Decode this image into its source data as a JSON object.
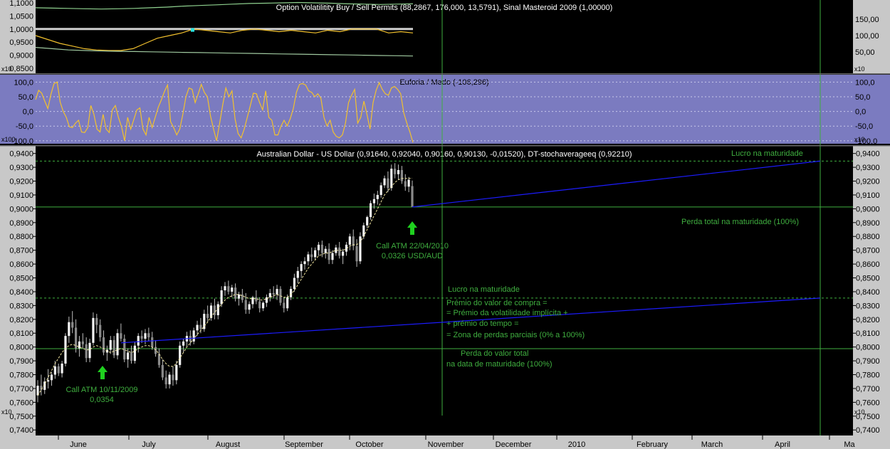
{
  "colors": {
    "background": "#000000",
    "euforia_panel": "#7b7bc0",
    "axis_strip": "#c8c8c8",
    "green_line": "#3fae3f",
    "yellow_line": "#f2c12e",
    "blue_line": "#1c1cff",
    "arrow": "#1fd11f"
  },
  "icons": {
    "up_arrow": "up-arrow-icon"
  },
  "chart_data": [
    {
      "type": "line",
      "title": "Option Volatilitity Buy / Sell Permits (88,2867, 176,000, 13,5791), Sinal Masteroid 2009 (1,00000)",
      "scale_label_left": "x10",
      "scale_label_right": "x10",
      "left_ticks": [
        "1,1000",
        "1,0500",
        "1,0000",
        "0,9500",
        "0,9000",
        "0,8500"
      ],
      "left_ylim": [
        0.85,
        1.1
      ],
      "right_ticks": [
        "150,00",
        "100,00",
        "50,00"
      ],
      "right_ylim": [
        0,
        200
      ],
      "series": [
        {
          "values": [
            185,
            184,
            183,
            182,
            181,
            182,
            183,
            185,
            187,
            190,
            192,
            194,
            196,
            198,
            199,
            200,
            201,
            200,
            199,
            197,
            196,
            195,
            196,
            197
          ]
        },
        {
          "values": [
            0.99,
            0.997,
            1.0,
            1.0,
            1.0,
            1.0,
            1.0,
            1.0,
            1.0,
            1.0,
            1.0,
            1.0,
            1.0,
            1.0,
            1.0,
            1.0,
            1.0,
            1.0,
            1.0,
            1.0,
            1.0,
            1.0,
            1.0,
            1.0
          ]
        },
        {
          "values": [
            0.975,
            0.96,
            0.945,
            0.935,
            0.925,
            0.92,
            0.918,
            0.918,
            0.925,
            0.945,
            0.965,
            0.975,
            0.985,
            1.0,
            0.995,
            0.99,
            0.985,
            0.995,
            1.0,
            0.995,
            0.99,
            0.995,
            0.99,
            0.985,
            0.995,
            0.99,
            1.0,
            1.0,
            1.0,
            0.985,
            0.99,
            0.985
          ]
        },
        {
          "values": [
            0.93,
            0.925,
            0.92,
            0.918,
            0.916,
            0.915,
            0.914,
            0.913,
            0.912,
            0.911,
            0.91,
            0.909,
            0.908,
            0.907,
            0.906,
            0.905,
            0.904,
            0.903,
            0.902,
            0.901,
            0.9,
            0.899,
            0.898,
            0.897
          ]
        }
      ]
    },
    {
      "type": "line",
      "title": "Euforia / Medo (-106,296)",
      "scale_label_left": "x100",
      "scale_label_right": "x10",
      "left_ticks": [
        "100,0",
        "50,0",
        "0,0",
        "-50,0",
        "-100,0"
      ],
      "right_ticks": [
        "100,0",
        "50,0",
        "0,0",
        "-50,0",
        "-100,0"
      ],
      "ylim": [
        -110,
        125
      ],
      "series": [
        {
          "values": [
            40,
            72,
            62,
            35,
            10,
            58,
            95,
            100,
            32,
            0,
            -20,
            -52,
            -55,
            -40,
            -30,
            -70,
            -72,
            -55,
            20,
            -10,
            -60,
            -70,
            -10,
            -60,
            -72,
            5,
            20,
            -20,
            -52,
            -100,
            -20,
            -60,
            -28,
            5,
            12,
            -60,
            -80,
            -20,
            -55,
            -20,
            15,
            40,
            68,
            90,
            -35,
            -55,
            -80,
            -60,
            -10,
            50,
            80,
            75,
            30,
            60,
            92,
            65,
            50,
            -15,
            -60,
            -100,
            -40,
            22,
            80,
            50,
            70,
            -25,
            -75,
            -90,
            -60,
            -20,
            20,
            62,
            60,
            30,
            5,
            70,
            -20,
            -30,
            -80,
            -80,
            -50,
            -30,
            -50,
            -25,
            10,
            65,
            92,
            95,
            90,
            70,
            65,
            50,
            60,
            45,
            -20,
            -50,
            -30,
            -70,
            -85,
            -90,
            -80,
            -40,
            30,
            55,
            75,
            -40,
            -20,
            35,
            -10,
            -60,
            30,
            72,
            98,
            75,
            60,
            55,
            80,
            85,
            75,
            60,
            -5,
            -40,
            -70,
            -106
          ]
        }
      ]
    },
    {
      "type": "bar",
      "title": "Australian Dollar - US Dollar (0,91640, 0,92040, 0,90160, 0,90130, -0,01520), DT-stochaverageeq (0,92210)",
      "scale_label_left": "x10",
      "scale_label_right": "x10",
      "left_ticks": [
        "0,9400",
        "0,9300",
        "0,9200",
        "0,9100",
        "0,9000",
        "0,8900",
        "0,8800",
        "0,8700",
        "0,8600",
        "0,8500",
        "0,8400",
        "0,8300",
        "0,8200",
        "0,8100",
        "0,8000",
        "0,7900",
        "0,7800",
        "0,7700",
        "0,7600",
        "0,7500",
        "0,7400"
      ],
      "right_ticks": [
        "0,9400",
        "0,9300",
        "0,9200",
        "0,9100",
        "0,9000",
        "0,8900",
        "0,8800",
        "0,8700",
        "0,8600",
        "0,8500",
        "0,8400",
        "0,8300",
        "0,8200",
        "0,8100",
        "0,8000",
        "0,7900",
        "0,7800",
        "0,7700",
        "0,7600",
        "0,7500",
        "0,7400"
      ],
      "ylim": [
        0.736,
        0.9455
      ],
      "x_labels": [
        "June",
        "July",
        "August",
        "September",
        "October",
        "November",
        "December",
        "2010",
        "February",
        "March",
        "April",
        "Ma"
      ],
      "candles": [
        [
          0.765,
          0.776,
          0.76,
          0.772
        ],
        [
          0.772,
          0.78,
          0.765,
          0.769
        ],
        [
          0.769,
          0.778,
          0.766,
          0.775
        ],
        [
          0.775,
          0.784,
          0.77,
          0.776
        ],
        [
          0.776,
          0.782,
          0.772,
          0.78
        ],
        [
          0.78,
          0.79,
          0.777,
          0.786
        ],
        [
          0.786,
          0.788,
          0.779,
          0.781
        ],
        [
          0.781,
          0.79,
          0.778,
          0.788
        ],
        [
          0.788,
          0.81,
          0.786,
          0.808
        ],
        [
          0.808,
          0.822,
          0.803,
          0.818
        ],
        [
          0.818,
          0.826,
          0.81,
          0.814
        ],
        [
          0.814,
          0.82,
          0.796,
          0.799
        ],
        [
          0.799,
          0.808,
          0.793,
          0.804
        ],
        [
          0.804,
          0.81,
          0.799,
          0.802
        ],
        [
          0.802,
          0.807,
          0.789,
          0.792
        ],
        [
          0.792,
          0.806,
          0.789,
          0.803
        ],
        [
          0.803,
          0.825,
          0.801,
          0.821
        ],
        [
          0.821,
          0.824,
          0.81,
          0.816
        ],
        [
          0.816,
          0.82,
          0.804,
          0.807
        ],
        [
          0.807,
          0.812,
          0.794,
          0.796
        ],
        [
          0.796,
          0.801,
          0.79,
          0.798
        ],
        [
          0.798,
          0.808,
          0.795,
          0.805
        ],
        [
          0.805,
          0.808,
          0.792,
          0.794
        ],
        [
          0.794,
          0.813,
          0.791,
          0.81
        ],
        [
          0.81,
          0.817,
          0.804,
          0.806
        ],
        [
          0.806,
          0.809,
          0.789,
          0.791
        ],
        [
          0.791,
          0.799,
          0.785,
          0.796
        ],
        [
          0.796,
          0.801,
          0.788,
          0.79
        ],
        [
          0.79,
          0.804,
          0.788,
          0.801
        ],
        [
          0.801,
          0.81,
          0.796,
          0.808
        ],
        [
          0.808,
          0.812,
          0.803,
          0.806
        ],
        [
          0.806,
          0.813,
          0.802,
          0.81
        ],
        [
          0.81,
          0.814,
          0.804,
          0.807
        ],
        [
          0.807,
          0.811,
          0.798,
          0.8
        ],
        [
          0.8,
          0.805,
          0.793,
          0.795
        ],
        [
          0.795,
          0.799,
          0.785,
          0.787
        ],
        [
          0.787,
          0.791,
          0.776,
          0.778
        ],
        [
          0.778,
          0.783,
          0.77,
          0.773
        ],
        [
          0.773,
          0.782,
          0.77,
          0.78
        ],
        [
          0.78,
          0.786,
          0.772,
          0.776
        ],
        [
          0.776,
          0.79,
          0.773,
          0.787
        ],
        [
          0.787,
          0.804,
          0.785,
          0.801
        ],
        [
          0.801,
          0.806,
          0.796,
          0.804
        ],
        [
          0.804,
          0.811,
          0.8,
          0.808
        ],
        [
          0.808,
          0.812,
          0.801,
          0.804
        ],
        [
          0.804,
          0.814,
          0.802,
          0.812
        ],
        [
          0.812,
          0.819,
          0.808,
          0.816
        ],
        [
          0.816,
          0.821,
          0.81,
          0.813
        ],
        [
          0.813,
          0.827,
          0.811,
          0.824
        ],
        [
          0.824,
          0.83,
          0.818,
          0.821
        ],
        [
          0.821,
          0.832,
          0.819,
          0.83
        ],
        [
          0.83,
          0.835,
          0.82,
          0.823
        ],
        [
          0.823,
          0.833,
          0.82,
          0.831
        ],
        [
          0.831,
          0.844,
          0.829,
          0.841
        ],
        [
          0.841,
          0.847,
          0.837,
          0.844
        ],
        [
          0.844,
          0.848,
          0.838,
          0.84
        ],
        [
          0.84,
          0.845,
          0.836,
          0.843
        ],
        [
          0.843,
          0.846,
          0.833,
          0.835
        ],
        [
          0.835,
          0.84,
          0.83,
          0.838
        ],
        [
          0.838,
          0.842,
          0.832,
          0.834
        ],
        [
          0.834,
          0.839,
          0.824,
          0.827
        ],
        [
          0.827,
          0.833,
          0.824,
          0.831
        ],
        [
          0.831,
          0.837,
          0.828,
          0.836
        ],
        [
          0.836,
          0.841,
          0.831,
          0.833
        ],
        [
          0.833,
          0.836,
          0.825,
          0.828
        ],
        [
          0.828,
          0.833,
          0.826,
          0.832
        ],
        [
          0.832,
          0.838,
          0.829,
          0.836
        ],
        [
          0.836,
          0.842,
          0.833,
          0.839
        ],
        [
          0.839,
          0.844,
          0.835,
          0.838
        ],
        [
          0.838,
          0.845,
          0.834,
          0.842
        ],
        [
          0.842,
          0.844,
          0.83,
          0.832
        ],
        [
          0.832,
          0.836,
          0.825,
          0.828
        ],
        [
          0.828,
          0.838,
          0.826,
          0.836
        ],
        [
          0.836,
          0.844,
          0.834,
          0.842
        ],
        [
          0.842,
          0.853,
          0.84,
          0.85
        ],
        [
          0.85,
          0.858,
          0.846,
          0.855
        ],
        [
          0.855,
          0.862,
          0.85,
          0.86
        ],
        [
          0.86,
          0.865,
          0.856,
          0.862
        ],
        [
          0.862,
          0.869,
          0.859,
          0.867
        ],
        [
          0.867,
          0.872,
          0.862,
          0.865
        ],
        [
          0.865,
          0.872,
          0.863,
          0.87
        ],
        [
          0.87,
          0.876,
          0.866,
          0.874
        ],
        [
          0.874,
          0.877,
          0.865,
          0.868
        ],
        [
          0.868,
          0.873,
          0.864,
          0.871
        ],
        [
          0.871,
          0.875,
          0.86,
          0.863
        ],
        [
          0.863,
          0.87,
          0.86,
          0.868
        ],
        [
          0.868,
          0.874,
          0.866,
          0.872
        ],
        [
          0.872,
          0.876,
          0.864,
          0.866
        ],
        [
          0.866,
          0.871,
          0.86,
          0.869
        ],
        [
          0.869,
          0.876,
          0.866,
          0.874
        ],
        [
          0.874,
          0.882,
          0.87,
          0.88
        ],
        [
          0.88,
          0.885,
          0.87,
          0.873
        ],
        [
          0.873,
          0.878,
          0.858,
          0.862
        ],
        [
          0.862,
          0.883,
          0.86,
          0.88
        ],
        [
          0.88,
          0.89,
          0.878,
          0.888
        ],
        [
          0.888,
          0.895,
          0.886,
          0.894
        ],
        [
          0.894,
          0.906,
          0.892,
          0.904
        ],
        [
          0.904,
          0.911,
          0.9,
          0.907
        ],
        [
          0.907,
          0.913,
          0.903,
          0.91
        ],
        [
          0.91,
          0.919,
          0.908,
          0.917
        ],
        [
          0.917,
          0.924,
          0.915,
          0.922
        ],
        [
          0.922,
          0.927,
          0.912,
          0.915
        ],
        [
          0.915,
          0.932,
          0.913,
          0.929
        ],
        [
          0.929,
          0.933,
          0.922,
          0.925
        ],
        [
          0.925,
          0.932,
          0.921,
          0.928
        ],
        [
          0.928,
          0.931,
          0.918,
          0.92
        ],
        [
          0.92,
          0.925,
          0.913,
          0.916
        ],
        [
          0.916,
          0.923,
          0.912,
          0.921
        ],
        [
          0.9164,
          0.9204,
          0.9016,
          0.9013
        ]
      ],
      "stoch_average": [
        0.765,
        0.769,
        0.773,
        0.778,
        0.783,
        0.788,
        0.792,
        0.796,
        0.799,
        0.801,
        0.802,
        0.801,
        0.8,
        0.799,
        0.798,
        0.798,
        0.8,
        0.801,
        0.8,
        0.799,
        0.797,
        0.796,
        0.797,
        0.798,
        0.799,
        0.798,
        0.797,
        0.796,
        0.797,
        0.799,
        0.8,
        0.801,
        0.801,
        0.8,
        0.798,
        0.795,
        0.791,
        0.788,
        0.786,
        0.786,
        0.788,
        0.792,
        0.796,
        0.8,
        0.803,
        0.806,
        0.809,
        0.812,
        0.815,
        0.818,
        0.822,
        0.825,
        0.828,
        0.831,
        0.834,
        0.836,
        0.837,
        0.838,
        0.838,
        0.837,
        0.836,
        0.835,
        0.835,
        0.835,
        0.834,
        0.834,
        0.835,
        0.836,
        0.837,
        0.838,
        0.837,
        0.836,
        0.836,
        0.838,
        0.841,
        0.845,
        0.849,
        0.853,
        0.857,
        0.86,
        0.863,
        0.866,
        0.867,
        0.868,
        0.868,
        0.869,
        0.87,
        0.87,
        0.87,
        0.871,
        0.873,
        0.874,
        0.874,
        0.876,
        0.88,
        0.885,
        0.89,
        0.895,
        0.9,
        0.905,
        0.91,
        0.913,
        0.916,
        0.919,
        0.921,
        0.922,
        0.922,
        0.922,
        0.9221
      ],
      "horizontal_levels": [
        0.9345,
        0.9013,
        0.8354,
        0.7988
      ],
      "trend_lines": [
        {
          "from_index": 24,
          "from_value": 0.803,
          "to_label": "April",
          "to_value": 0.8354
        },
        {
          "from_index": 108,
          "from_value": 0.9013,
          "to_label": "April",
          "to_value": 0.9345
        }
      ],
      "annotations": {
        "lucro_top": "Lucro na maturidade",
        "perda_top": "Perda total na maturidade (100%)",
        "call_2010_line1": "Call ATM 22/04/2010",
        "call_2010_line2": "0,0326 USD/AUD",
        "call_2009_line1": "Call ATM 10/11/2009",
        "call_2009_line2": "0,0354",
        "lucro_mid": "Lucro na maturidade",
        "premio_lines": [
          "Prémio do valor de compra =",
          "= Prémio da volatilidade implícita +",
          "+ prémio do tempo =",
          "= Zona de perdas parciais (0% a 100%)"
        ],
        "perda_mid_line1": "Perda do valor total",
        "perda_mid_line2": "na data de maturidade (100%)"
      }
    }
  ]
}
